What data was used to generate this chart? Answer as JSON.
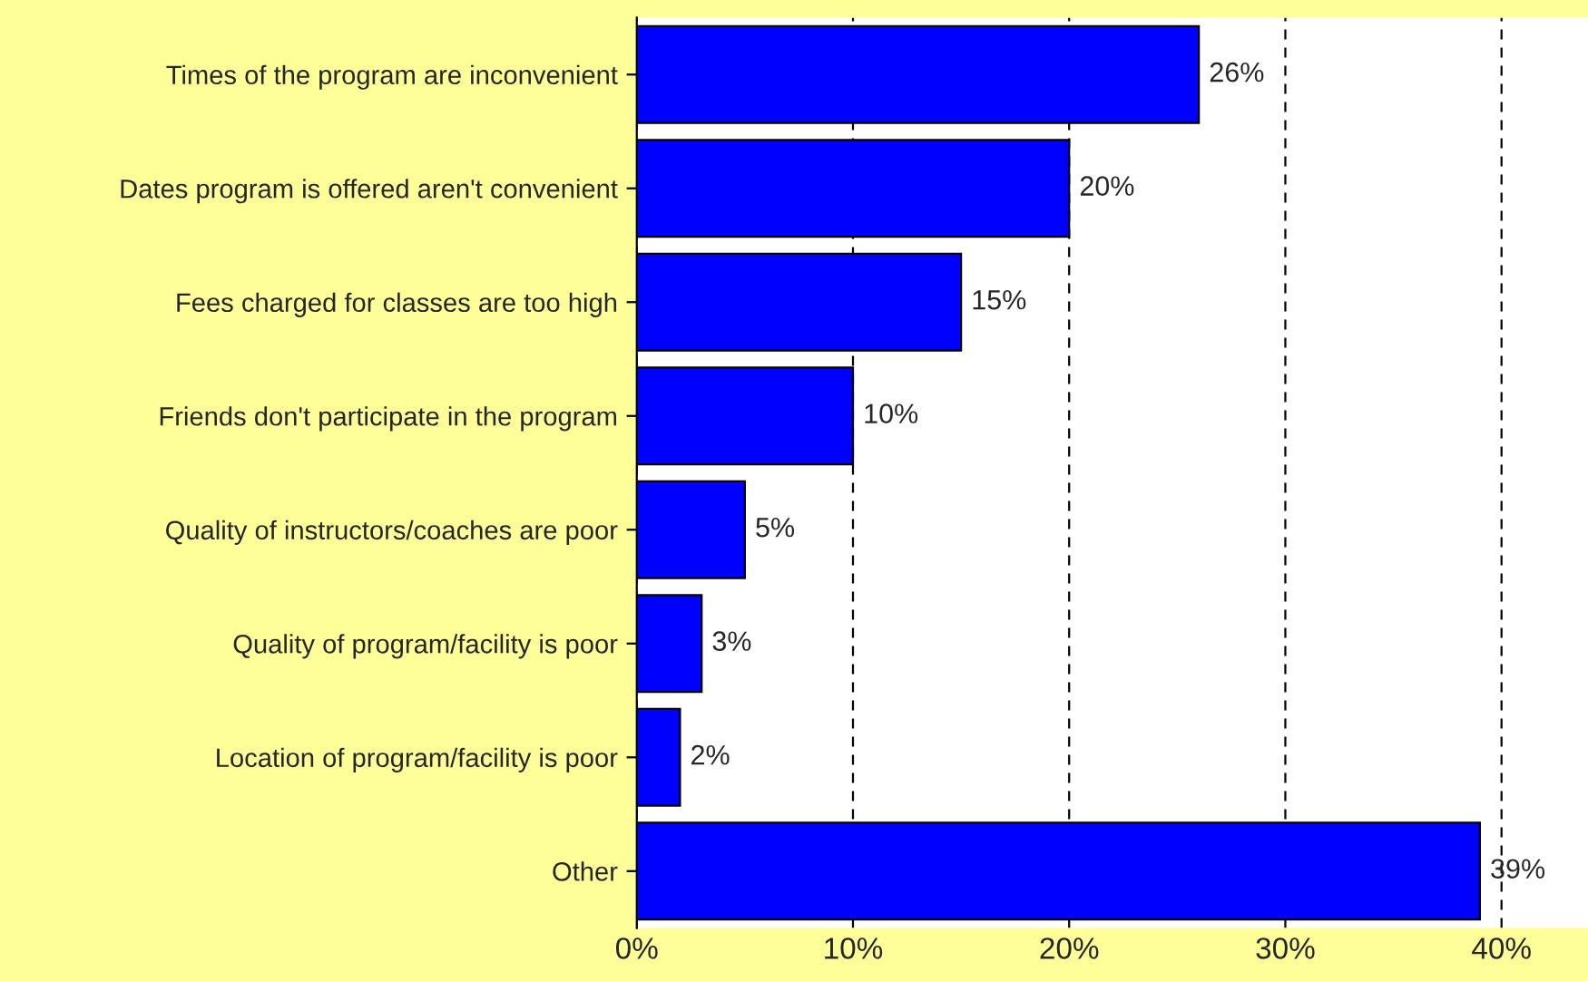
{
  "chart_data": {
    "type": "bar",
    "orientation": "horizontal",
    "categories": [
      "Times of the program are inconvenient",
      "Dates program is offered aren't convenient",
      "Fees charged for classes are too high",
      "Friends don't participate in the program",
      "Quality of instructors/coaches are poor",
      "Quality of program/facility is poor",
      "Location of program/facility is poor",
      "Other"
    ],
    "values": [
      26,
      20,
      15,
      10,
      5,
      3,
      2,
      39
    ],
    "value_labels": [
      "26%",
      "20%",
      "15%",
      "10%",
      "5%",
      "3%",
      "2%",
      "39%"
    ],
    "color": "#0000ff",
    "xlim": [
      0,
      44
    ],
    "xticks": [
      {
        "value": 0,
        "label": "0%"
      },
      {
        "value": 10,
        "label": "10%"
      },
      {
        "value": 20,
        "label": "20%"
      },
      {
        "value": 30,
        "label": "30%"
      },
      {
        "value": 40,
        "label": "40%"
      }
    ],
    "grid": "x",
    "legend": false
  }
}
